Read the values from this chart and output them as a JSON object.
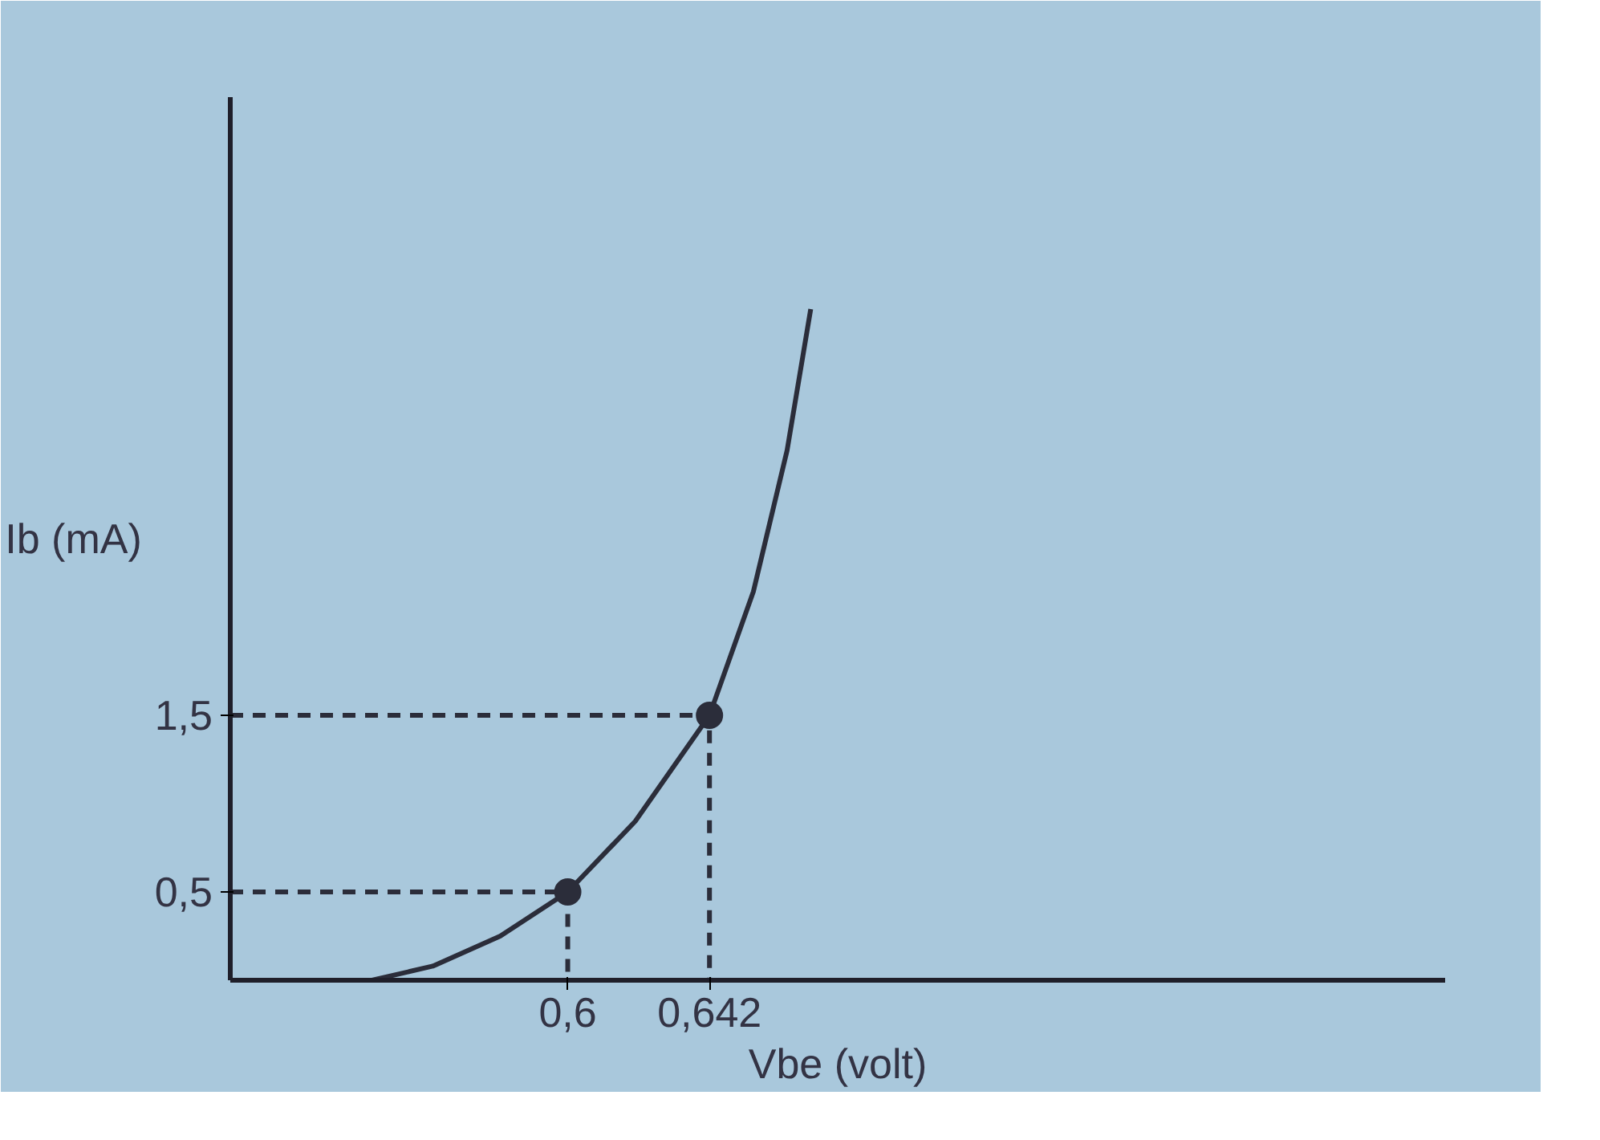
{
  "chart_data": {
    "type": "line",
    "xlabel": "Vbe (volt)",
    "ylabel": "Ib (mA)",
    "xlim": [
      0.5,
      0.86
    ],
    "ylim": [
      0,
      5
    ],
    "xticks": [
      {
        "value": 0.6,
        "label": "0,6"
      },
      {
        "value": 0.642,
        "label": "0,642"
      }
    ],
    "yticks": [
      {
        "value": 0.5,
        "label": "0,5"
      },
      {
        "value": 1.5,
        "label": "1,5"
      }
    ],
    "grid": false,
    "series": [
      {
        "color": "#2b2d3a",
        "line_style": "solid",
        "marker": "none",
        "x": [
          0.542,
          0.56,
          0.58,
          0.6,
          0.62,
          0.642,
          0.655,
          0.665,
          0.672
        ],
        "values": [
          0,
          0.08,
          0.25,
          0.5,
          0.9,
          1.5,
          2.2,
          3.0,
          3.8
        ]
      },
      {
        "type": "line",
        "color": "#2b2d3a",
        "line_style": "dashed",
        "marker": "none",
        "x": [
          0.5,
          0.6,
          0.6
        ],
        "values": [
          0.5,
          0.5,
          0
        ]
      },
      {
        "type": "line",
        "color": "#2b2d3a",
        "line_style": "dashed",
        "marker": "none",
        "x": [
          0.5,
          0.642,
          0.642
        ],
        "values": [
          1.5,
          1.5,
          0
        ]
      },
      {
        "type": "scatter",
        "color": "#2b2d3a",
        "marker": "circle",
        "x": [
          0.6,
          0.642
        ],
        "values": [
          0.5,
          1.5
        ]
      }
    ]
  }
}
